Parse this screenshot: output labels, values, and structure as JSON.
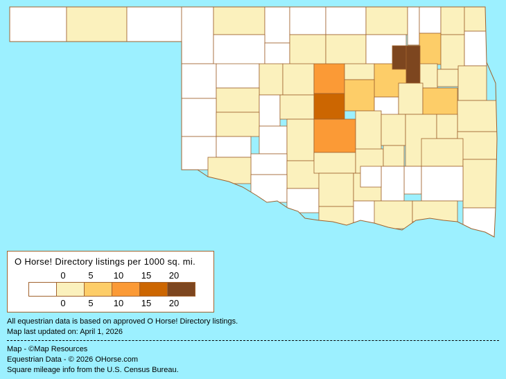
{
  "legend": {
    "title": "O Horse! Directory listings per 1000 sq. mi.",
    "ticks": [
      "0",
      "5",
      "10",
      "15",
      "20"
    ],
    "colors": [
      "#ffffff",
      "#fbf1bd",
      "#fdcd68",
      "#fb9a36",
      "#cc6601",
      "#7d461f"
    ]
  },
  "footer": {
    "line1": "All equestrian data is based on approved O Horse! Directory listings.",
    "line2": "Map last updated on: April 1, 2026",
    "line3": "Map - ©Map Resources",
    "line4": "Equestrian Data - © 2026 OHorse.com",
    "line5": "Square mileage info from the U.S. Census Bureau."
  },
  "colors": {
    "background": "#9cf0ff",
    "border": "#a0622d"
  }
}
